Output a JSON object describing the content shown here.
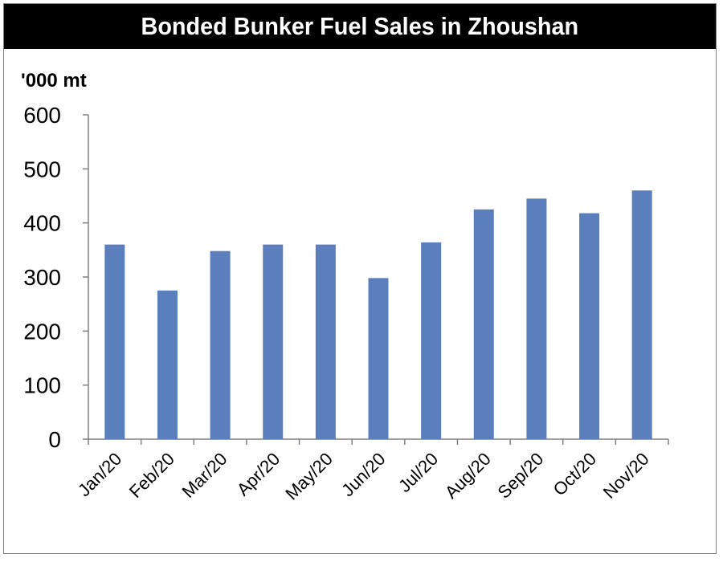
{
  "chart_data": {
    "type": "bar",
    "title": "Bonded Bunker Fuel Sales in Zhoushan",
    "ylabel": "'000 mt",
    "xlabel": "",
    "categories": [
      "Jan/20",
      "Feb/20",
      "Mar/20",
      "Apr/20",
      "May/20",
      "Jun/20",
      "Jul/20",
      "Aug/20",
      "Sep/20",
      "Oct/20",
      "Nov/20"
    ],
    "values": [
      360,
      275,
      348,
      360,
      360,
      298,
      364,
      425,
      445,
      418,
      460
    ],
    "ylim": [
      0,
      600
    ],
    "yticks": [
      0,
      100,
      200,
      300,
      400,
      500,
      600
    ],
    "bar_color": "#5b7fbd",
    "grid": false,
    "legend": "none"
  }
}
